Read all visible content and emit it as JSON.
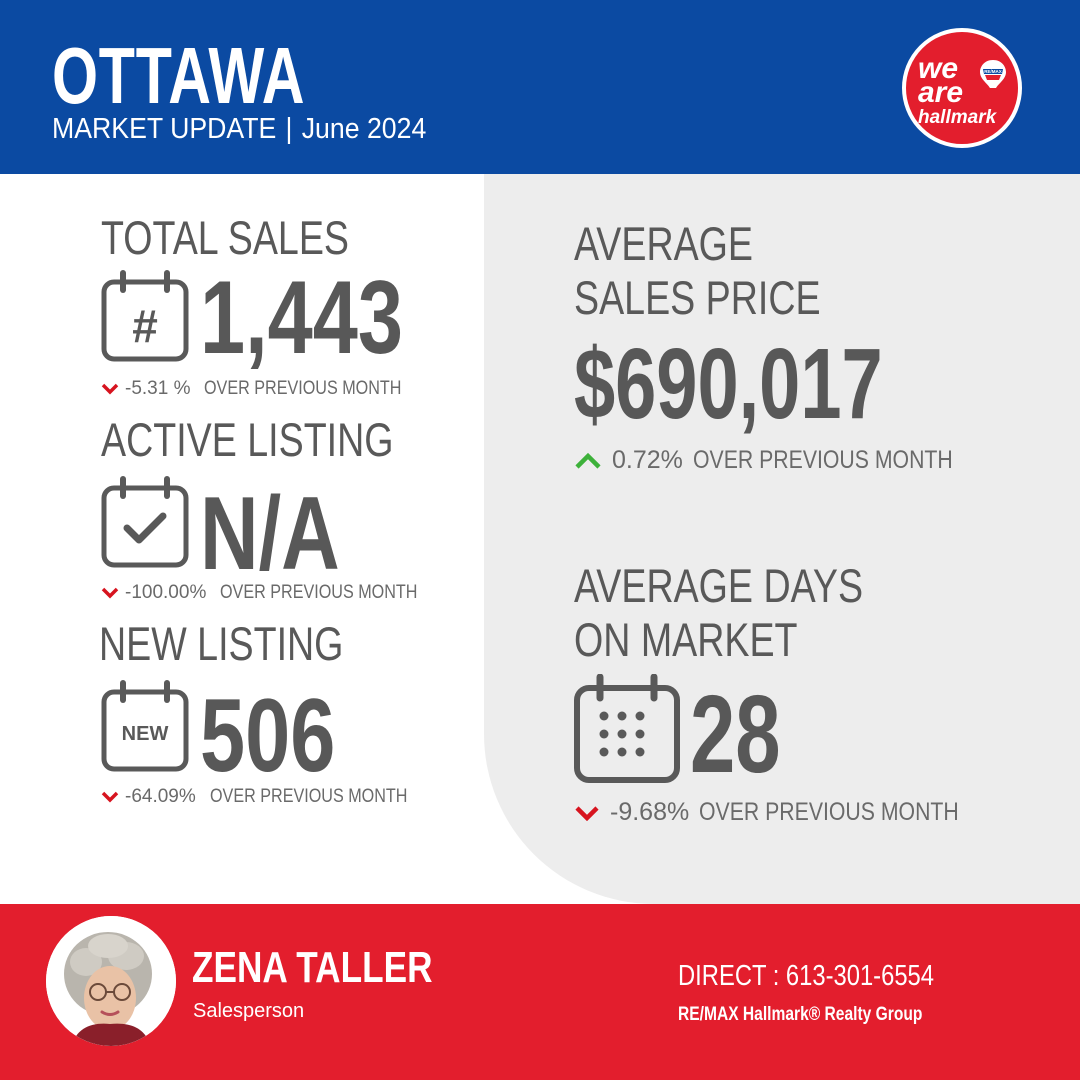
{
  "header": {
    "city": "OTTAWA",
    "subtitle_left": "MARKET UPDATE",
    "subtitle_sep": "|",
    "subtitle_right": "June 2024",
    "logo": {
      "line1": "we",
      "line2": "are",
      "line3": "hallmark",
      "balloon_text": "RE/MAX",
      "icon": "remax-balloon-icon"
    }
  },
  "stats": {
    "total_sales": {
      "label": "TOTAL SALES",
      "value": "1,443",
      "change": "-5.31 %",
      "direction": "down",
      "note": "OVER PREVIOUS MONTH",
      "icon_text": "#",
      "icon": "calendar-hash-icon"
    },
    "active_listing": {
      "label": "ACTIVE LISTING",
      "value": "N/A",
      "change": "-100.00%",
      "direction": "down",
      "note": "OVER PREVIOUS MONTH",
      "icon": "calendar-check-icon"
    },
    "new_listing": {
      "label": "NEW LISTING",
      "value": "506",
      "change": "-64.09%",
      "direction": "down",
      "note": "OVER PREVIOUS MONTH",
      "icon_text": "NEW",
      "icon": "calendar-new-icon"
    },
    "avg_price": {
      "label_line1": "AVERAGE",
      "label_line2": "SALES PRICE",
      "value": "$690,017",
      "change": "0.72%",
      "direction": "up",
      "note": "OVER PREVIOUS MONTH"
    },
    "avg_days": {
      "label_line1": "AVERAGE DAYS",
      "label_line2": "ON MARKET",
      "value": "28",
      "change": "-9.68%",
      "direction": "down",
      "note": "OVER PREVIOUS MONTH",
      "icon": "calendar-dots-icon"
    }
  },
  "footer": {
    "name": "ZENA TALLER",
    "role": "Salesperson",
    "direct": "DIRECT : 613-301-6554",
    "brokerage": "RE/MAX Hallmark® Realty Group"
  },
  "colors": {
    "header_blue": "#0b4aa2",
    "brand_red": "#e31e2d",
    "text_gray": "#585858",
    "panel_gray": "#ededed",
    "down_red": "#d7141f",
    "up_green": "#3db13a"
  }
}
